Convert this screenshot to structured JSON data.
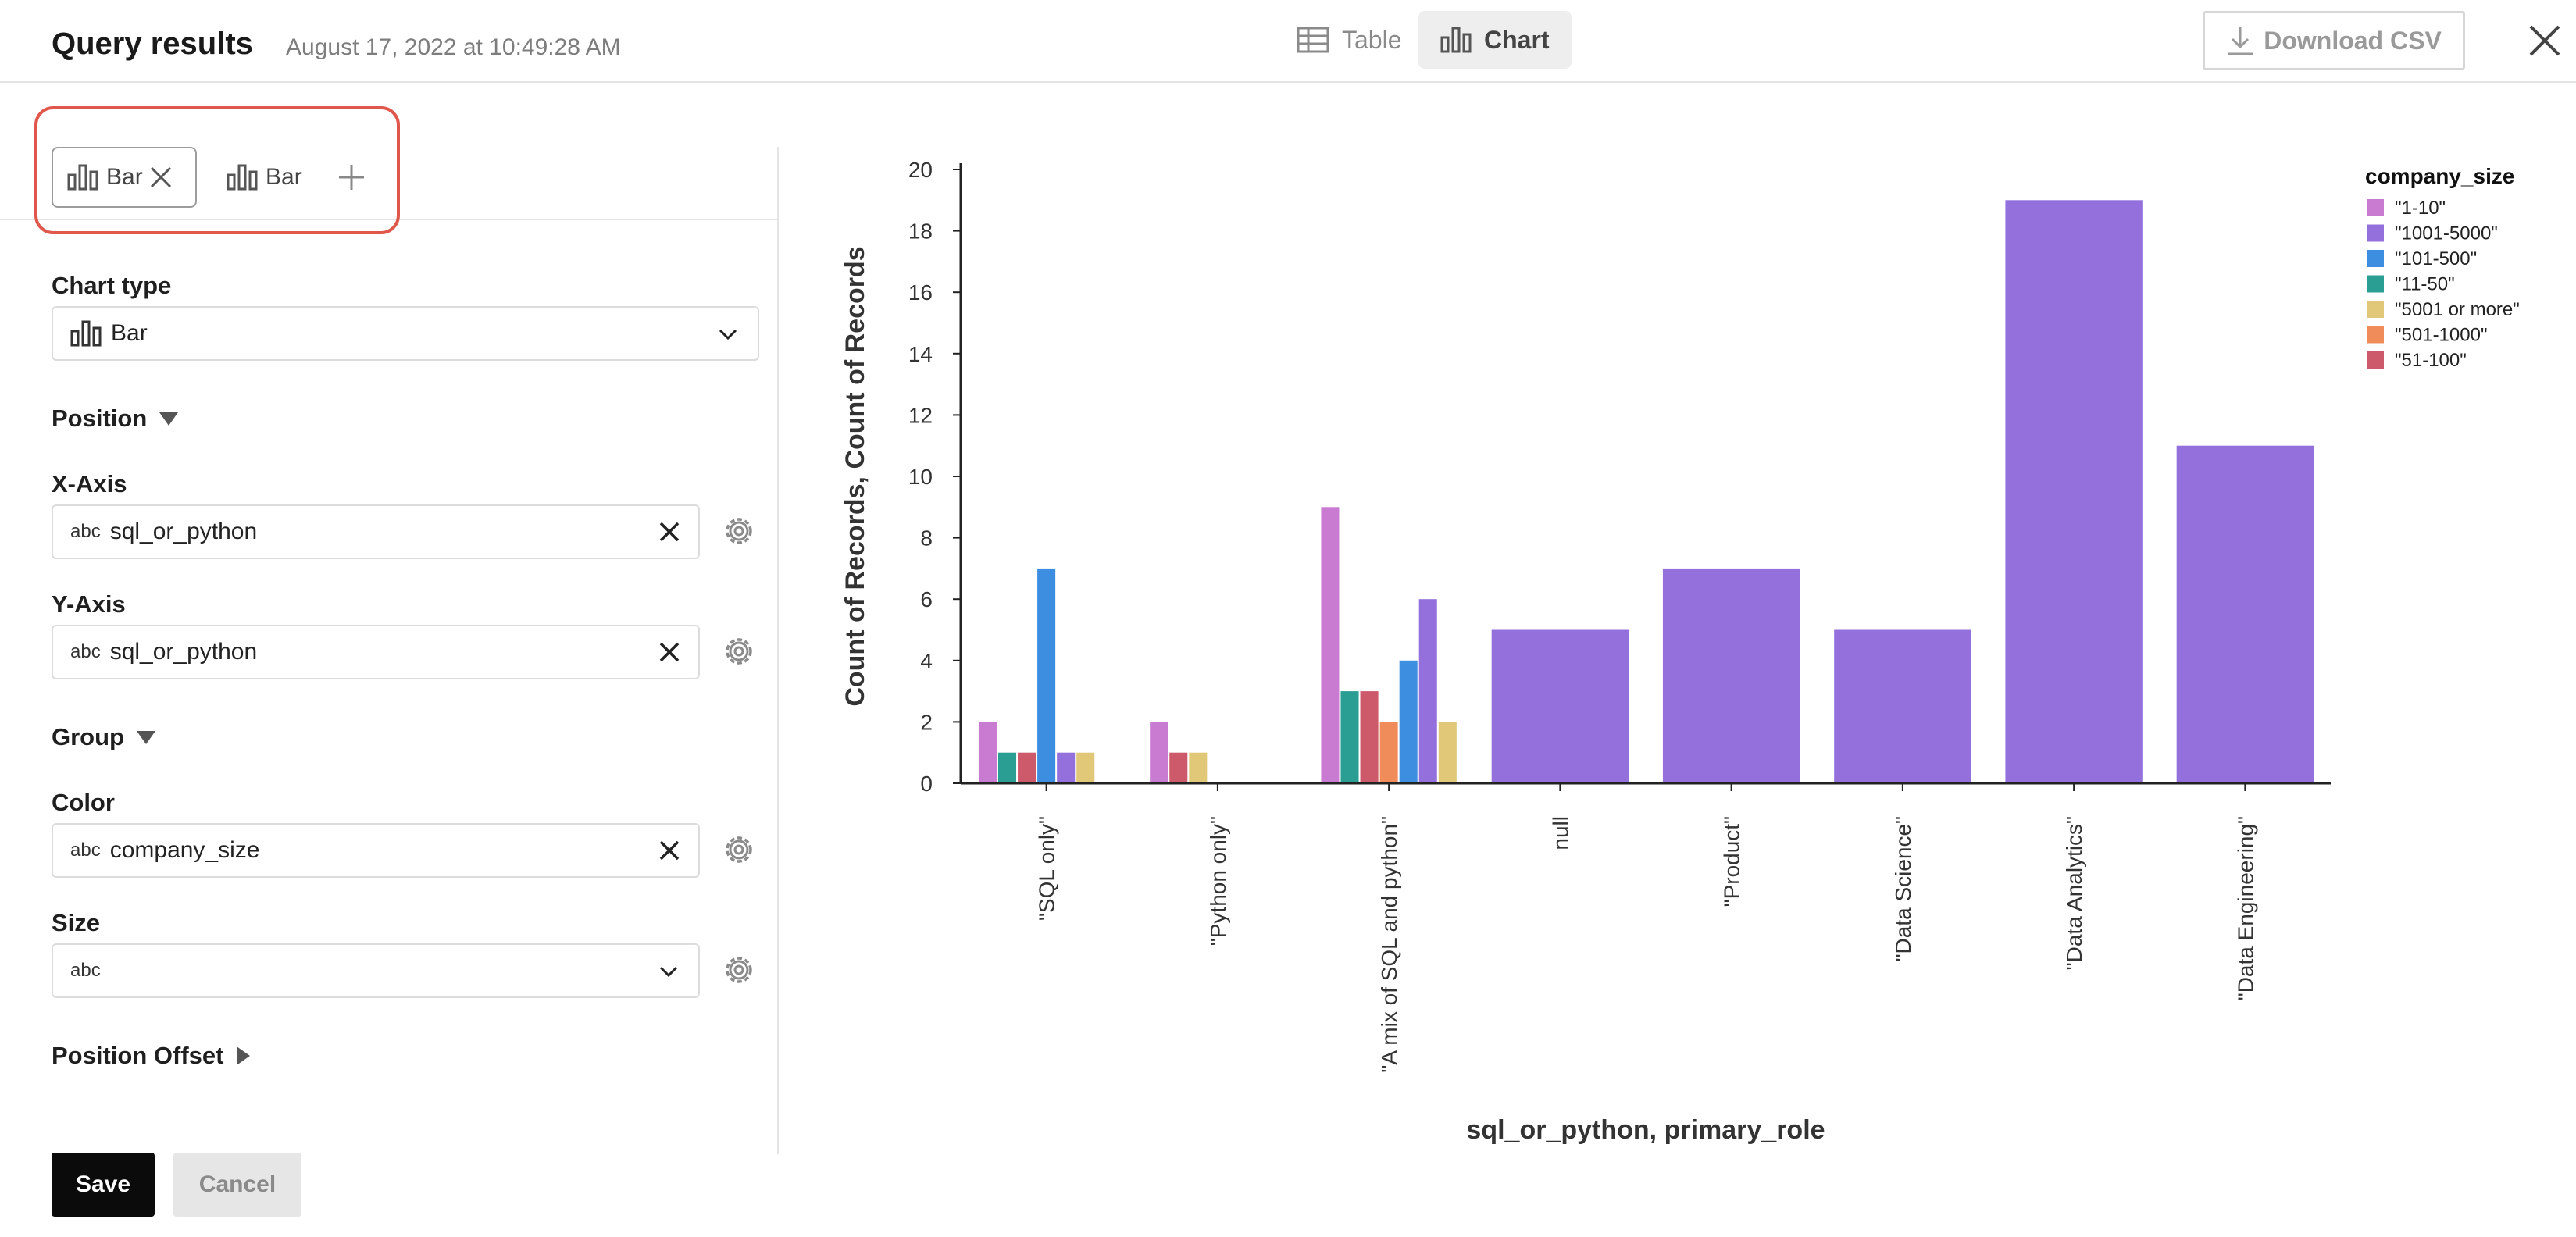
{
  "header": {
    "title": "Query results",
    "timestamp": "August 17, 2022 at 10:49:28 AM",
    "tabs": [
      {
        "label": "Table",
        "icon": "table-icon"
      },
      {
        "label": "Chart",
        "icon": "bar-chart-icon",
        "active": true
      }
    ],
    "download_label": "Download CSV"
  },
  "chart_tabs": [
    {
      "label": "Bar",
      "active": true
    },
    {
      "label": "Bar",
      "active": false
    }
  ],
  "config": {
    "chart_type_label": "Chart type",
    "chart_type_value": "Bar",
    "position_section": "Position",
    "x_axis_label": "X-Axis",
    "x_axis_type": "abc",
    "x_axis_value": "sql_or_python",
    "y_axis_label": "Y-Axis",
    "y_axis_type": "abc",
    "y_axis_value": "sql_or_python",
    "group_section": "Group",
    "color_label": "Color",
    "color_type": "abc",
    "color_value": "company_size",
    "size_label": "Size",
    "size_type": "abc",
    "position_offset_section": "Position Offset"
  },
  "actions": {
    "save_label": "Save",
    "cancel_label": "Cancel"
  },
  "chart_data": {
    "type": "bar",
    "xlabel": "sql_or_python, primary_role",
    "ylabel": "Count of Records, Count of Records",
    "ylim": [
      0,
      20
    ],
    "yticks": [
      0,
      2,
      4,
      6,
      8,
      10,
      12,
      14,
      16,
      18,
      20
    ],
    "legend_title": "company_size",
    "legend_position": "top-right",
    "series": [
      {
        "name": "\"1-10\"",
        "color": "#c97bd1"
      },
      {
        "name": "\"1001-5000\"",
        "color": "#9370db"
      },
      {
        "name": "\"101-500\"",
        "color": "#3d8ee0"
      },
      {
        "name": "\"11-50\"",
        "color": "#2b9e94"
      },
      {
        "name": "\"5001 or more\"",
        "color": "#e0c878"
      },
      {
        "name": "\"501-1000\"",
        "color": "#f08c5a"
      },
      {
        "name": "\"51-100\"",
        "color": "#cd5a6a"
      }
    ],
    "categories": [
      {
        "label": "\"SQL only\"",
        "bars": [
          {
            "series": "\"1-10\"",
            "value": 2
          },
          {
            "series": "\"11-50\"",
            "value": 1
          },
          {
            "series": "\"51-100\"",
            "value": 1
          },
          {
            "series": "\"101-500\"",
            "value": 7
          },
          {
            "series": "\"1001-5000\"",
            "value": 1
          },
          {
            "series": "\"5001 or more\"",
            "value": 1
          }
        ]
      },
      {
        "label": "\"Python only\"",
        "bars": [
          {
            "series": "\"1-10\"",
            "value": 2
          },
          {
            "series": "\"51-100\"",
            "value": 1
          },
          {
            "series": "\"5001 or more\"",
            "value": 1
          }
        ]
      },
      {
        "label": "\"A mix of SQL and python\"",
        "bars": [
          {
            "series": "\"1-10\"",
            "value": 9
          },
          {
            "series": "\"11-50\"",
            "value": 3
          },
          {
            "series": "\"51-100\"",
            "value": 3
          },
          {
            "series": "\"501-1000\"",
            "value": 2
          },
          {
            "series": "\"101-500\"",
            "value": 4
          },
          {
            "series": "\"1001-5000\"",
            "value": 6
          },
          {
            "series": "\"5001 or more\"",
            "value": 2
          }
        ]
      },
      {
        "label": "null",
        "bars": [
          {
            "series": "\"1001-5000\"",
            "value": 5
          }
        ]
      },
      {
        "label": "\"Product\"",
        "bars": [
          {
            "series": "\"1001-5000\"",
            "value": 7
          }
        ]
      },
      {
        "label": "\"Data Science\"",
        "bars": [
          {
            "series": "\"1001-5000\"",
            "value": 5
          }
        ]
      },
      {
        "label": "\"Data Analytics\"",
        "bars": [
          {
            "series": "\"1001-5000\"",
            "value": 19
          }
        ]
      },
      {
        "label": "\"Data Engineering\"",
        "bars": [
          {
            "series": "\"1001-5000\"",
            "value": 11
          }
        ]
      }
    ]
  }
}
